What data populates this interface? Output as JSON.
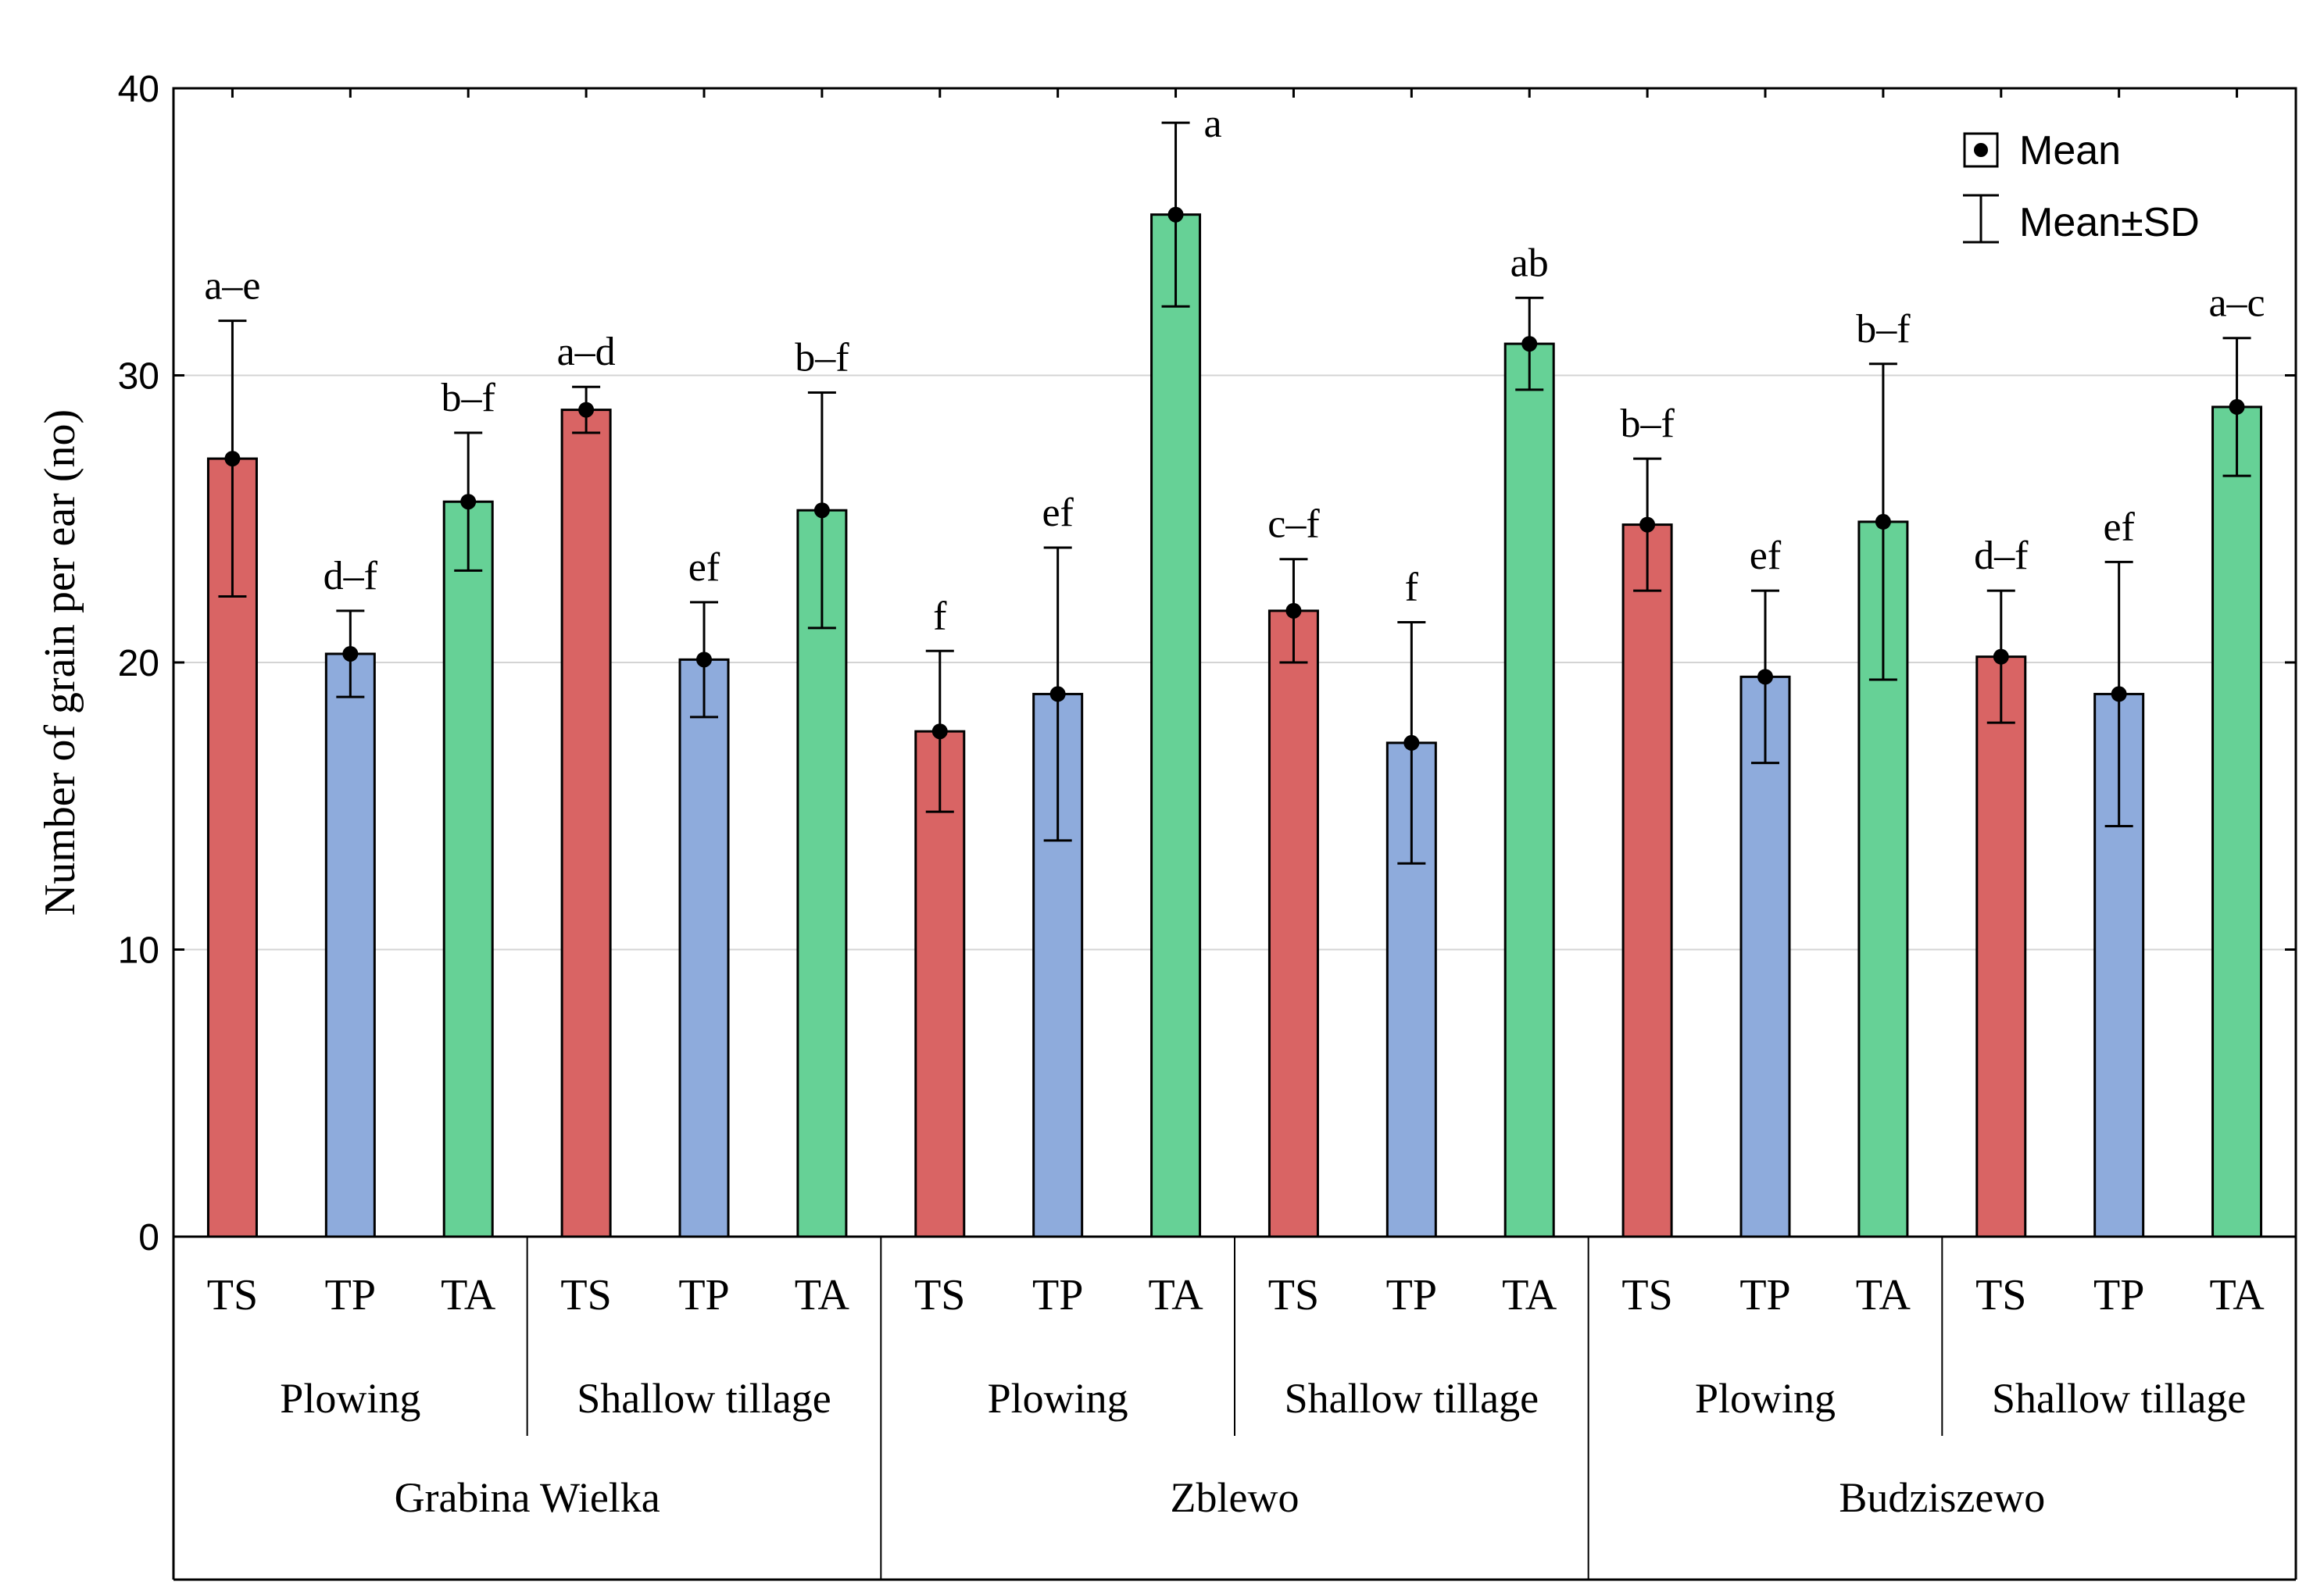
{
  "chart_data": {
    "type": "bar",
    "ylabel": "Number of grain per ear (no)",
    "ylim": [
      0,
      40
    ],
    "yticks": [
      0,
      10,
      20,
      30,
      40
    ],
    "grid": true,
    "legend_position": "top-right",
    "legend": {
      "mean_label": "Mean",
      "sd_label": "Mean±SD"
    },
    "colors": {
      "TS": "#d96464",
      "TP": "#8eabdc",
      "TA": "#66d196"
    },
    "sites": [
      "Grabina Wielka",
      "Zblewo",
      "Budziszewo"
    ],
    "tillage": [
      "Plowing",
      "Shallow tillage",
      "Plowing",
      "Shallow tillage",
      "Plowing",
      "Shallow tillage"
    ],
    "bars": [
      {
        "site": "Grabina Wielka",
        "tillage": "Plowing",
        "category": "TS",
        "mean": 27.1,
        "sd": 4.8,
        "group": "a–e"
      },
      {
        "site": "Grabina Wielka",
        "tillage": "Plowing",
        "category": "TP",
        "mean": 20.3,
        "sd": 1.5,
        "group": "d–f"
      },
      {
        "site": "Grabina Wielka",
        "tillage": "Plowing",
        "category": "TA",
        "mean": 25.6,
        "sd": 2.4,
        "group": "b–f"
      },
      {
        "site": "Grabina Wielka",
        "tillage": "Shallow tillage",
        "category": "TS",
        "mean": 28.8,
        "sd": 0.8,
        "group": "a–d"
      },
      {
        "site": "Grabina Wielka",
        "tillage": "Shallow tillage",
        "category": "TP",
        "mean": 20.1,
        "sd": 2.0,
        "group": "ef"
      },
      {
        "site": "Grabina Wielka",
        "tillage": "Shallow tillage",
        "category": "TA",
        "mean": 25.3,
        "sd": 4.1,
        "group": "b–f"
      },
      {
        "site": "Zblewo",
        "tillage": "Plowing",
        "category": "TS",
        "mean": 17.6,
        "sd": 2.8,
        "group": "f"
      },
      {
        "site": "Zblewo",
        "tillage": "Plowing",
        "category": "TP",
        "mean": 18.9,
        "sd": 5.1,
        "group": "ef"
      },
      {
        "site": "Zblewo",
        "tillage": "Plowing",
        "category": "TA",
        "mean": 35.6,
        "sd": 3.2,
        "group": "a"
      },
      {
        "site": "Zblewo",
        "tillage": "Shallow tillage",
        "category": "TS",
        "mean": 21.8,
        "sd": 1.8,
        "group": "c–f"
      },
      {
        "site": "Zblewo",
        "tillage": "Shallow tillage",
        "category": "TP",
        "mean": 17.2,
        "sd": 4.2,
        "group": "f"
      },
      {
        "site": "Zblewo",
        "tillage": "Shallow tillage",
        "category": "TA",
        "mean": 31.1,
        "sd": 1.6,
        "group": "ab"
      },
      {
        "site": "Budziszewo",
        "tillage": "Plowing",
        "category": "TS",
        "mean": 24.8,
        "sd": 2.3,
        "group": "b–f"
      },
      {
        "site": "Budziszewo",
        "tillage": "Plowing",
        "category": "TP",
        "mean": 19.5,
        "sd": 3.0,
        "group": "ef"
      },
      {
        "site": "Budziszewo",
        "tillage": "Plowing",
        "category": "TA",
        "mean": 24.9,
        "sd": 5.5,
        "group": "b–f"
      },
      {
        "site": "Budziszewo",
        "tillage": "Shallow tillage",
        "category": "TS",
        "mean": 20.2,
        "sd": 2.3,
        "group": "d–f"
      },
      {
        "site": "Budziszewo",
        "tillage": "Shallow tillage",
        "category": "TP",
        "mean": 18.9,
        "sd": 4.6,
        "group": "ef"
      },
      {
        "site": "Budziszewo",
        "tillage": "Shallow tillage",
        "category": "TA",
        "mean": 28.9,
        "sd": 2.4,
        "group": "a–c"
      }
    ]
  }
}
